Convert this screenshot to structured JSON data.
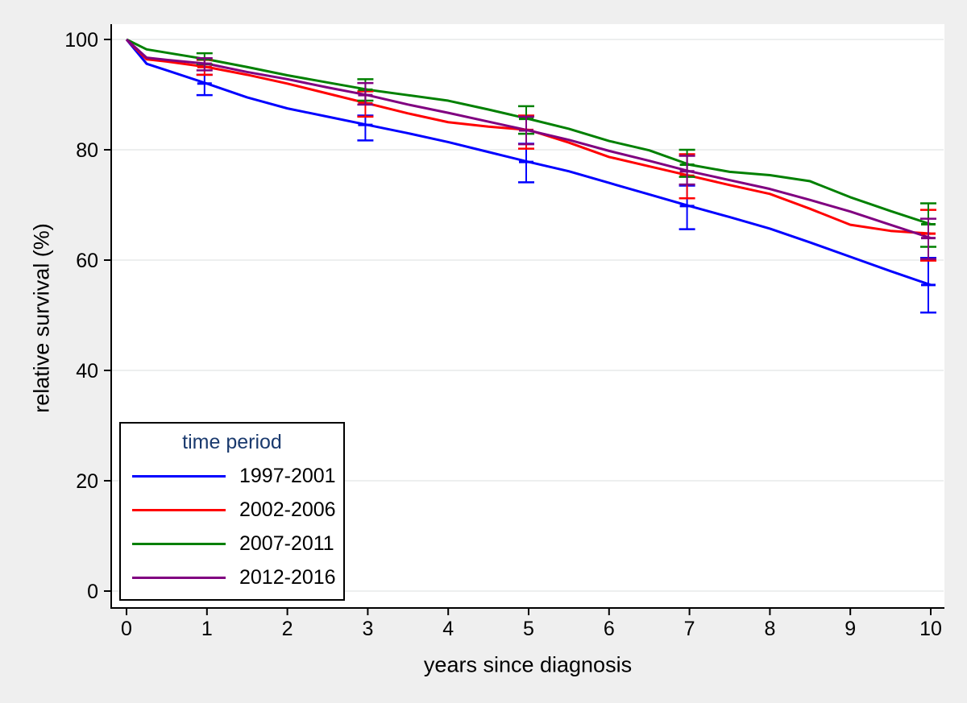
{
  "style": {
    "background": "#efefef",
    "plot_background": "#ffffff",
    "grid_color": "#e7eaea",
    "axis_color": "#000000",
    "tick_label_color": "#000000",
    "legend_title_color": "#1a3a6e"
  },
  "chart_data": {
    "type": "line",
    "xlabel": "years since diagnosis",
    "ylabel": "relative survival (%)",
    "xlim": [
      0,
      10
    ],
    "ylim": [
      0,
      100
    ],
    "x_ticks": [
      0,
      1,
      2,
      3,
      4,
      5,
      6,
      7,
      8,
      9,
      10
    ],
    "y_ticks": [
      0,
      20,
      40,
      60,
      80,
      100
    ],
    "grid": "horizontal",
    "legend": {
      "title": "time period",
      "position": "bottom-left-inside"
    },
    "x": [
      0,
      0.25,
      0.5,
      1,
      1.5,
      2,
      2.5,
      3,
      3.5,
      4,
      4.5,
      5,
      5.5,
      6,
      6.5,
      7,
      7.5,
      8,
      8.5,
      9,
      9.5,
      10
    ],
    "series": [
      {
        "name": "1997-2001",
        "color": "#0000ff",
        "values": [
          100,
          95.6,
          94.4,
          92.0,
          89.5,
          87.5,
          86.0,
          84.5,
          83.0,
          81.4,
          79.6,
          77.8,
          76.1,
          74.0,
          71.9,
          69.8,
          67.8,
          65.7,
          63.2,
          60.6,
          58.0,
          55.5
        ],
        "error_bars": [
          {
            "x": 1,
            "low": 89.9,
            "high": 93.6
          },
          {
            "x": 3,
            "low": 81.7,
            "high": 86.2
          },
          {
            "x": 5,
            "low": 74.1,
            "high": 81.1
          },
          {
            "x": 7,
            "low": 65.6,
            "high": 73.5
          },
          {
            "x": 10,
            "low": 50.5,
            "high": 60.4
          }
        ]
      },
      {
        "name": "2002-2006",
        "color": "#ff0000",
        "values": [
          100,
          96.4,
          96.0,
          95.0,
          93.6,
          92.0,
          90.2,
          88.4,
          86.6,
          85.0,
          84.2,
          83.6,
          81.3,
          78.7,
          77.0,
          75.3,
          73.6,
          72.0,
          69.3,
          66.4,
          65.3,
          64.8
        ],
        "error_bars": [
          {
            "x": 1,
            "low": 93.6,
            "high": 96.3
          },
          {
            "x": 3,
            "low": 86.0,
            "high": 90.6
          },
          {
            "x": 5,
            "low": 80.2,
            "high": 86.2
          },
          {
            "x": 7,
            "low": 71.2,
            "high": 79.2
          },
          {
            "x": 10,
            "low": 59.9,
            "high": 69.1
          }
        ]
      },
      {
        "name": "2007-2011",
        "color": "#008000",
        "values": [
          100,
          98.2,
          97.6,
          96.4,
          95.0,
          93.5,
          92.2,
          90.9,
          89.9,
          88.9,
          87.3,
          85.6,
          83.8,
          81.6,
          79.9,
          77.3,
          76.0,
          75.4,
          74.3,
          71.4,
          68.9,
          66.5
        ],
        "error_bars": [
          {
            "x": 1,
            "low": 95.5,
            "high": 97.5
          },
          {
            "x": 3,
            "low": 88.9,
            "high": 92.8
          },
          {
            "x": 5,
            "low": 82.9,
            "high": 87.9
          },
          {
            "x": 7,
            "low": 75.1,
            "high": 80.0
          },
          {
            "x": 10,
            "low": 62.4,
            "high": 70.3
          }
        ]
      },
      {
        "name": "2012-2016",
        "color": "#800080",
        "values": [
          100,
          96.7,
          96.3,
          95.6,
          94.1,
          92.8,
          91.3,
          89.9,
          88.2,
          86.7,
          85.1,
          83.5,
          81.8,
          79.8,
          78.0,
          76.1,
          74.5,
          72.9,
          70.9,
          68.8,
          66.4,
          64.0
        ],
        "error_bars": [
          {
            "x": 1,
            "low": 94.4,
            "high": 96.6
          },
          {
            "x": 3,
            "low": 88.2,
            "high": 92.1
          },
          {
            "x": 5,
            "low": 81.0,
            "high": 86.0
          },
          {
            "x": 7,
            "low": 73.7,
            "high": 78.9
          },
          {
            "x": 10,
            "low": 60.2,
            "high": 67.5
          }
        ]
      }
    ]
  }
}
